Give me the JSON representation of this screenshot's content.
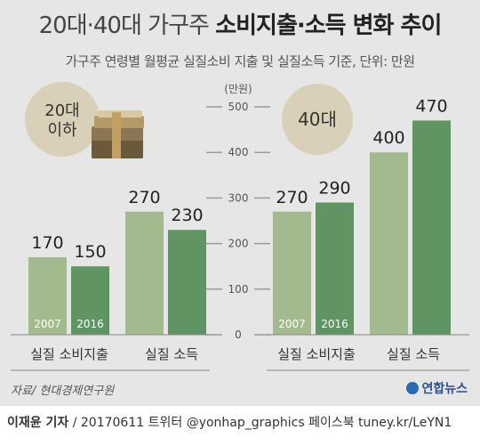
{
  "header": {
    "title_light": "20대·40대 가구주",
    "title_bold": "소비지출·소득 변화 추이",
    "subtitle": "가구주 연령별 월평균 실질소비 지출 및 실질소득 기준, 단위: 만원"
  },
  "colors": {
    "bar2007": "#a3ba8e",
    "bar2016": "#5e9563",
    "circle": "#d9d0b8",
    "bg": "#e6e6e6"
  },
  "chart_data": [
    {
      "type": "bar",
      "group_label": "20대 이하",
      "categories": [
        "실질 소비지출",
        "실질 소득"
      ],
      "series": [
        {
          "name": "2007",
          "values": [
            170,
            270
          ]
        },
        {
          "name": "2016",
          "values": [
            150,
            230
          ]
        }
      ],
      "ylim": [
        0,
        500
      ]
    },
    {
      "type": "bar",
      "group_label": "40대",
      "categories": [
        "실질 소비지출",
        "실질 소득"
      ],
      "series": [
        {
          "name": "2007",
          "values": [
            270,
            400
          ]
        },
        {
          "name": "2016",
          "values": [
            290,
            470
          ]
        }
      ],
      "ylim": [
        0,
        500
      ]
    }
  ],
  "axis": {
    "unit": "(만원)",
    "ticks": [
      0,
      100,
      200,
      300,
      400,
      500
    ]
  },
  "source": "자료/ 현대경제연구원",
  "logo": "연합뉴스",
  "footer": {
    "author": "이재윤 기자",
    "rest": " / 20170611   트위터 @yonhap_graphics  페이스북 tuney.kr/LeYN1"
  }
}
